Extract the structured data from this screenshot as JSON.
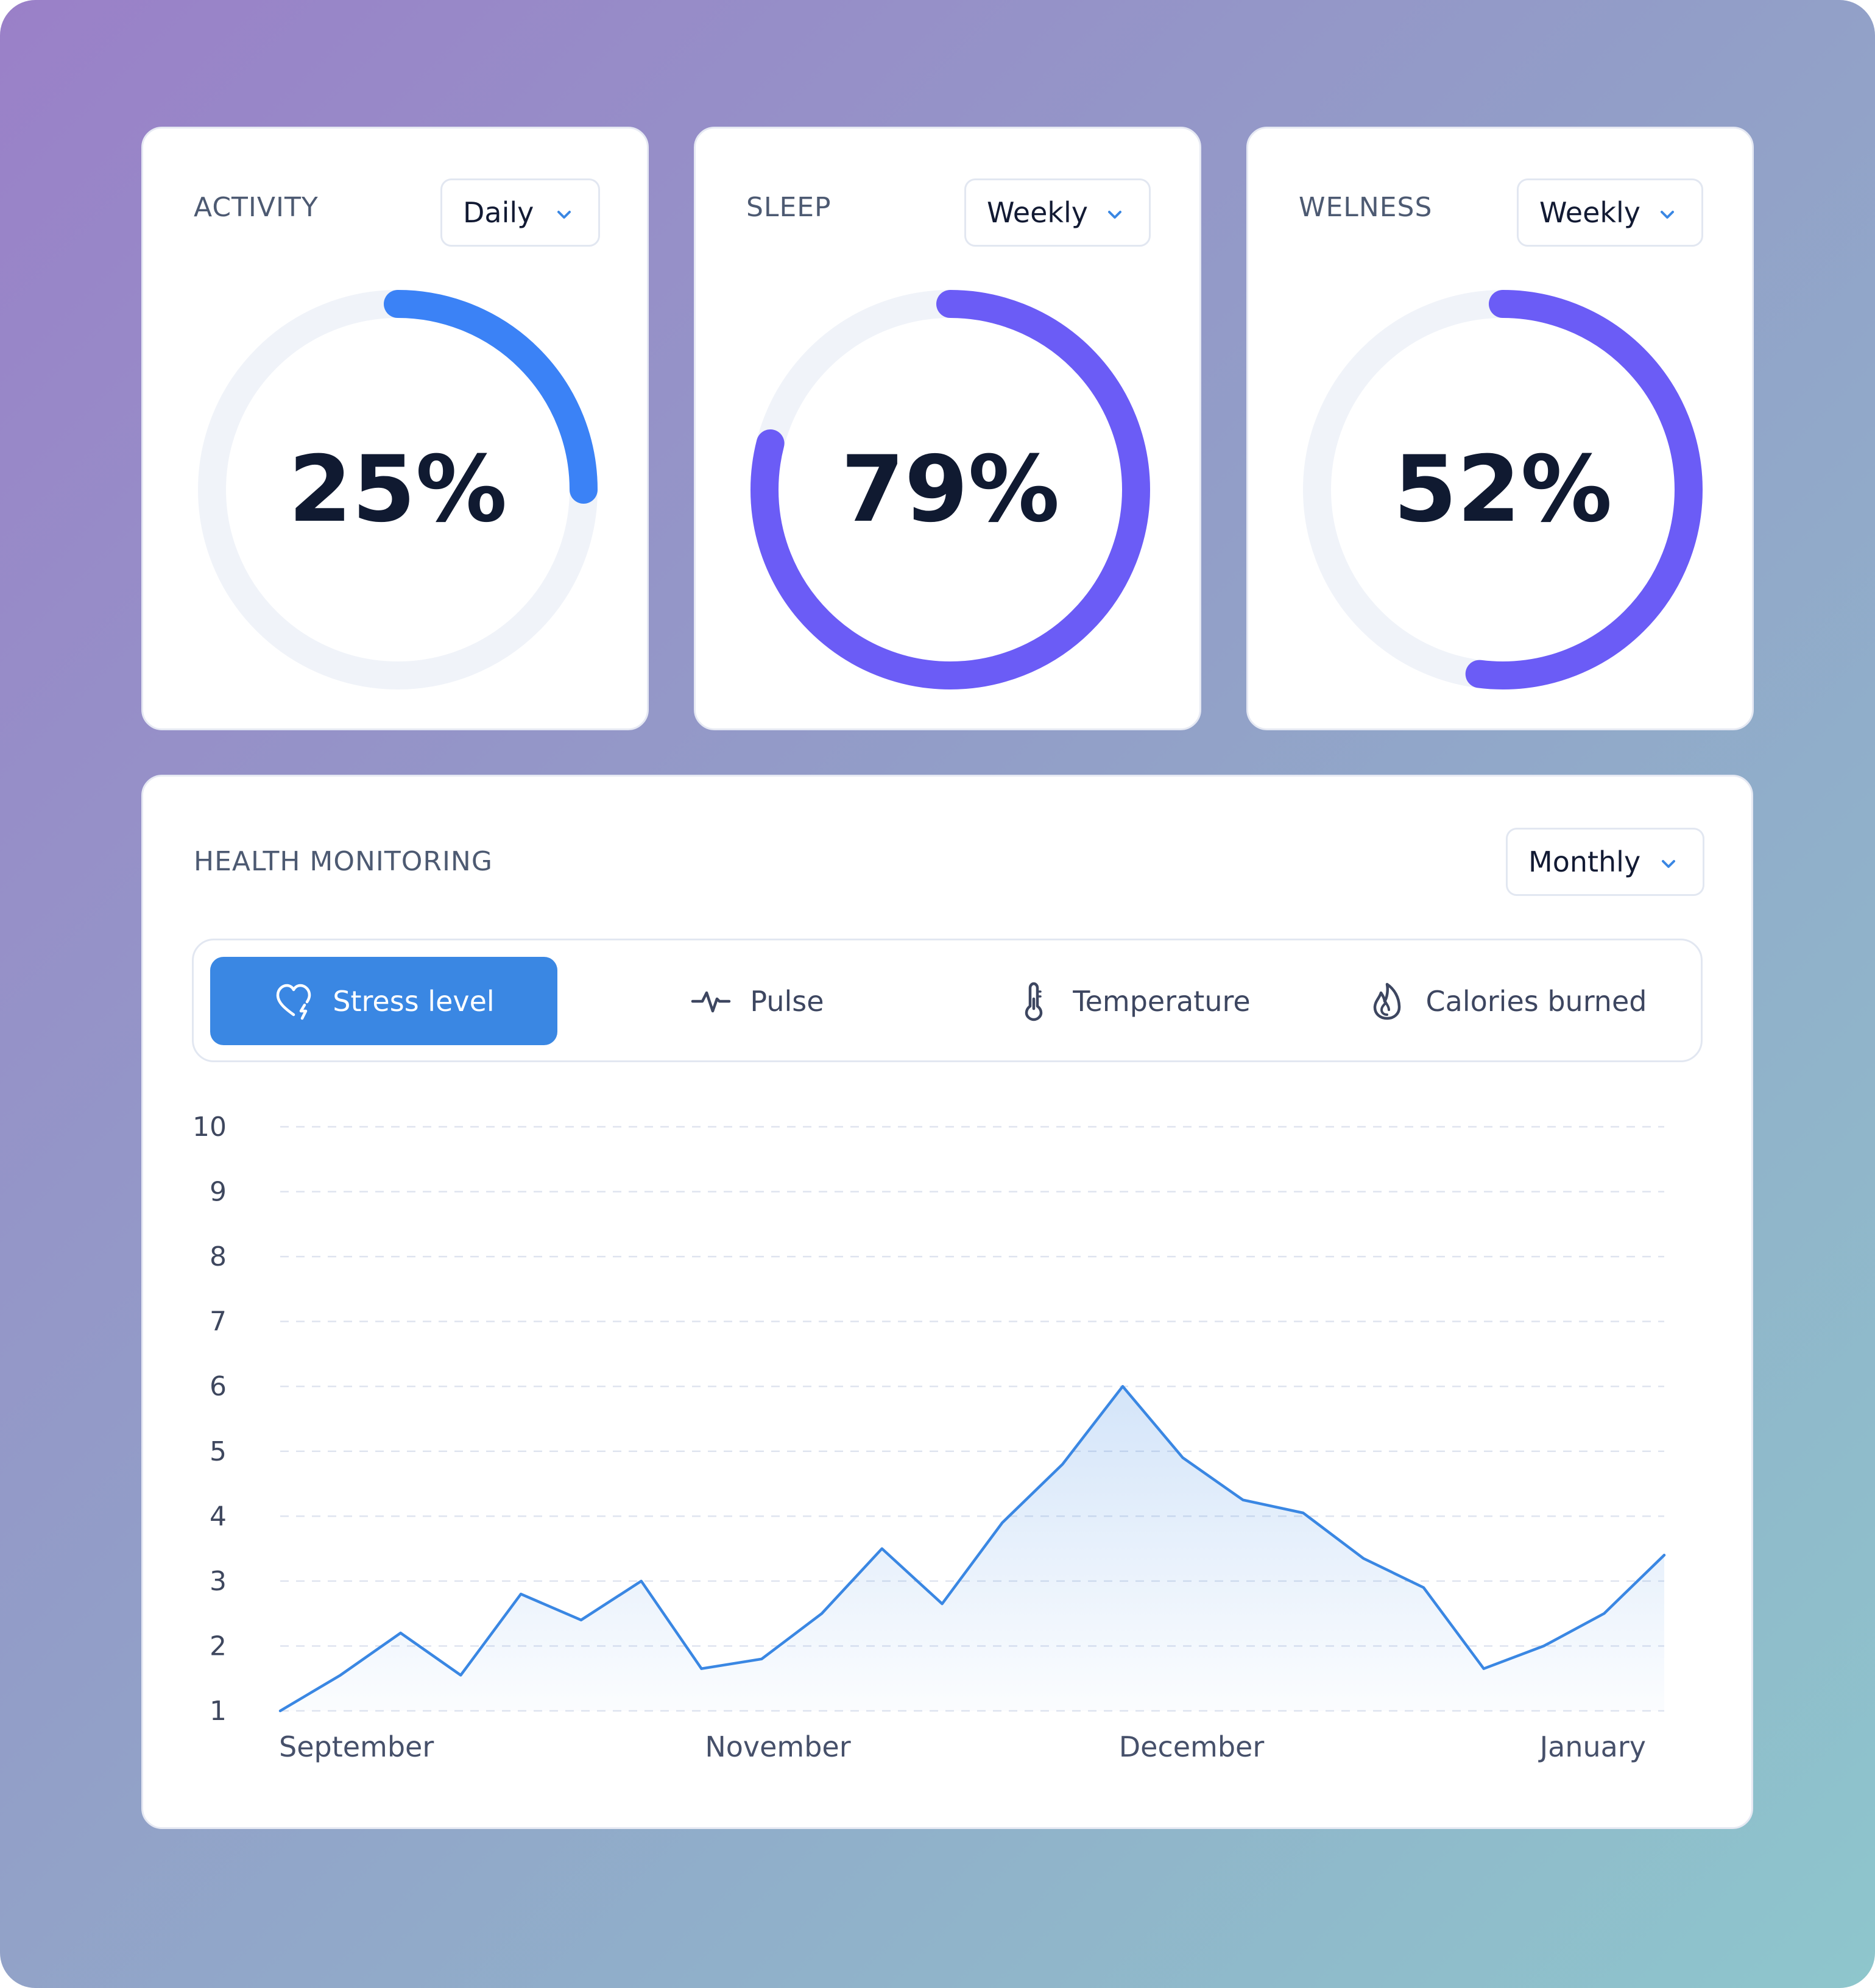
{
  "rings": [
    {
      "title": "ACTIVITY",
      "period": "Daily",
      "percent": 25,
      "value_label": "25%",
      "color": "#3b82f6"
    },
    {
      "title": "SLEEP",
      "period": "Weekly",
      "percent": 79,
      "value_label": "79%",
      "color": "#6b5cf6"
    },
    {
      "title": "WELNESS",
      "period": "Weekly",
      "percent": 52,
      "value_label": "52%",
      "color": "#6b5cf6"
    }
  ],
  "monitor": {
    "title": "HEALTH MONITORING",
    "period": "Monthly",
    "tabs": [
      {
        "label": "Stress level",
        "icon": "heart-bolt-icon",
        "active": true
      },
      {
        "label": "Pulse",
        "icon": "pulse-icon",
        "active": false
      },
      {
        "label": "Temperature",
        "icon": "thermometer-icon",
        "active": false
      },
      {
        "label": "Calories burned",
        "icon": "flame-icon",
        "active": false
      }
    ]
  },
  "chart_data": {
    "type": "area",
    "ylim": [
      1,
      10
    ],
    "yticks": [
      10,
      9,
      8,
      7,
      6,
      5,
      4,
      3,
      2,
      1
    ],
    "xlabels": [
      "September",
      "November",
      "December",
      "January"
    ],
    "grid": true,
    "line_color": "#3a87e3",
    "values": [
      1.0,
      1.55,
      2.2,
      1.55,
      2.8,
      2.4,
      3.0,
      1.65,
      1.8,
      2.5,
      3.5,
      2.65,
      3.9,
      4.8,
      6.0,
      4.9,
      4.25,
      4.05,
      3.35,
      2.9,
      1.65,
      2.0,
      2.5,
      3.4
    ]
  }
}
